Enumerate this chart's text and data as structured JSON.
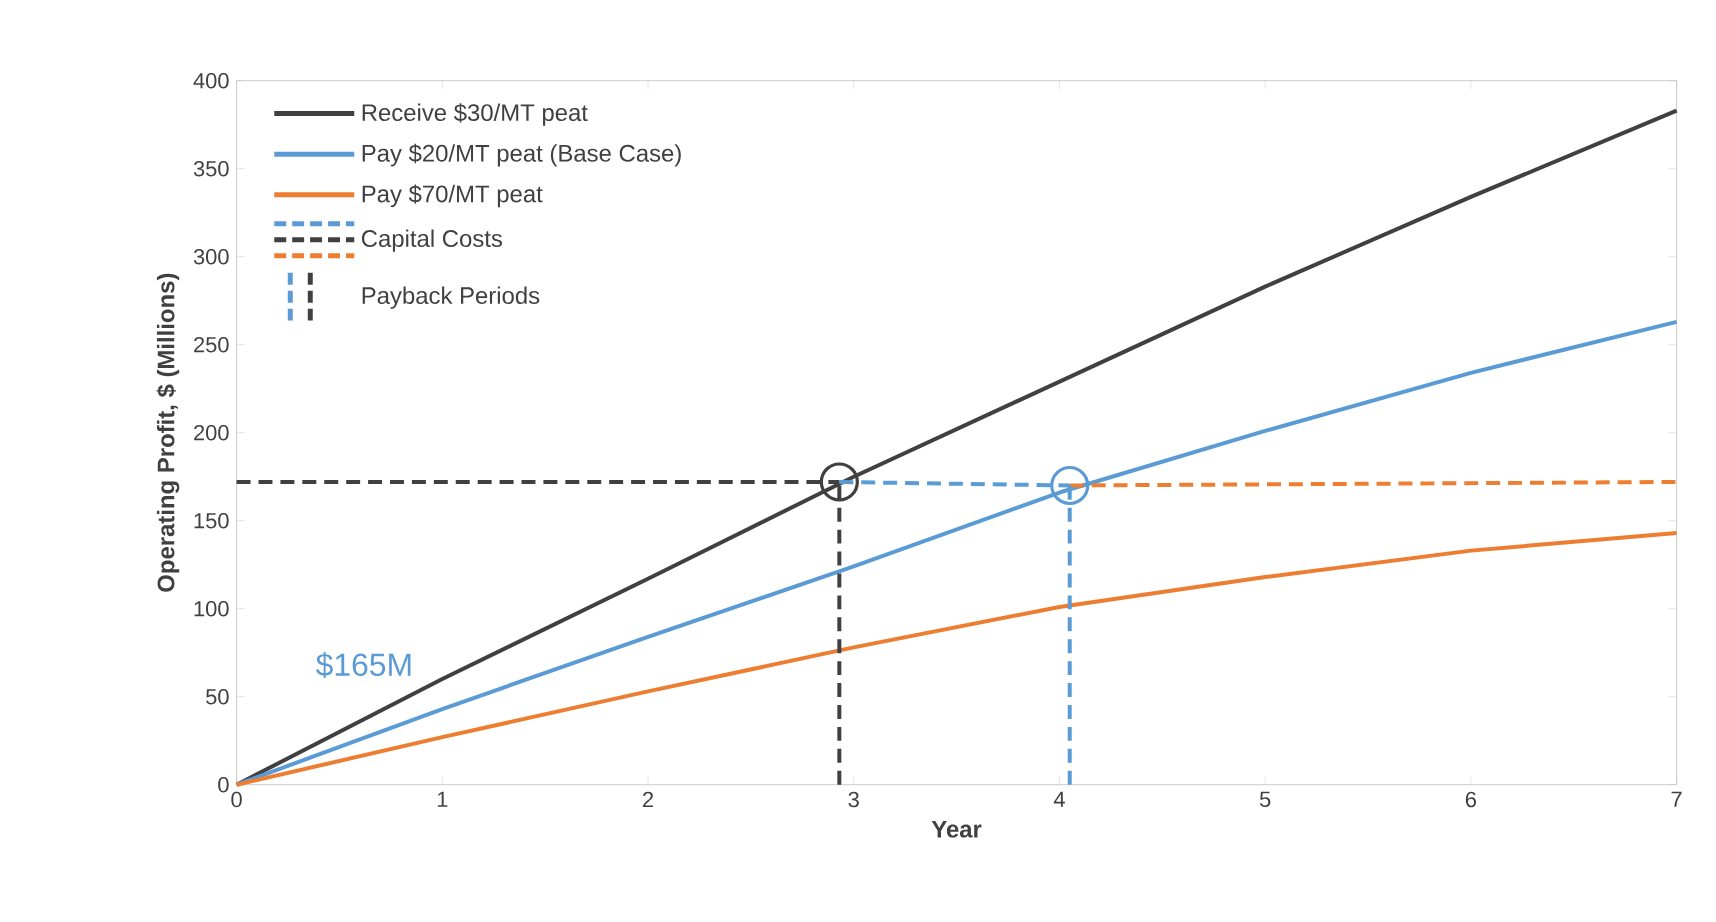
{
  "chart_data": {
    "type": "line",
    "xlabel": "Year",
    "ylabel": "Operating Profit, $ (Millions)",
    "xlim": [
      0,
      7
    ],
    "ylim": [
      0,
      400
    ],
    "xticks": [
      0,
      1,
      2,
      3,
      4,
      5,
      6,
      7
    ],
    "yticks": [
      0,
      50,
      100,
      150,
      200,
      250,
      300,
      350,
      400
    ],
    "grid": false,
    "legend": "top left",
    "line_style": "solid",
    "marker": "none",
    "series": [
      {
        "name": "Receive $30/MT peat",
        "color": "#404040",
        "x": [
          0,
          1,
          2,
          3,
          4,
          5,
          6,
          7
        ],
        "values": [
          0,
          60,
          117,
          175,
          229,
          283,
          334,
          383
        ]
      },
      {
        "name": "Pay $20/MT peat (Base Case)",
        "color": "#5b9bd5",
        "x": [
          0,
          1,
          2,
          3,
          4,
          5,
          6,
          7
        ],
        "values": [
          0,
          43,
          84,
          124,
          166,
          201,
          234,
          263
        ]
      },
      {
        "name": "Pay $70/MT peat",
        "color": "#ed7d31",
        "x": [
          0,
          1,
          2,
          3,
          4,
          5,
          6,
          7
        ],
        "values": [
          0,
          27,
          53,
          78,
          101,
          118,
          133,
          143
        ]
      },
      {
        "name": "Capital Costs",
        "color": "#404040",
        "line_style": "dashed",
        "x": [
          0,
          2.93
        ],
        "values": [
          172,
          172
        ]
      },
      {
        "color": "#5b9bd5",
        "line_style": "dashed",
        "x": [
          2.93,
          4.05
        ],
        "values": [
          172,
          170
        ]
      },
      {
        "color": "#ed7d31",
        "line_style": "dashed",
        "x": [
          4.05,
          7
        ],
        "values": [
          170,
          172
        ]
      },
      {
        "name": "Payback Periods",
        "color": "#404040",
        "line_style": "dashed",
        "x": [
          2.93,
          2.93
        ],
        "values": [
          0,
          172
        ]
      },
      {
        "color": "#5b9bd5",
        "line_style": "dashed",
        "x": [
          4.05,
          4.05
        ],
        "values": [
          0,
          170
        ]
      },
      {
        "type": "scatter",
        "color": "#404040",
        "marker": "circle",
        "x": [
          2.93
        ],
        "values": [
          172
        ]
      },
      {
        "type": "scatter",
        "color": "#5b9bd5",
        "marker": "circle",
        "x": [
          4.05
        ],
        "values": [
          170
        ]
      }
    ],
    "annotations": [
      "$165M"
    ]
  }
}
